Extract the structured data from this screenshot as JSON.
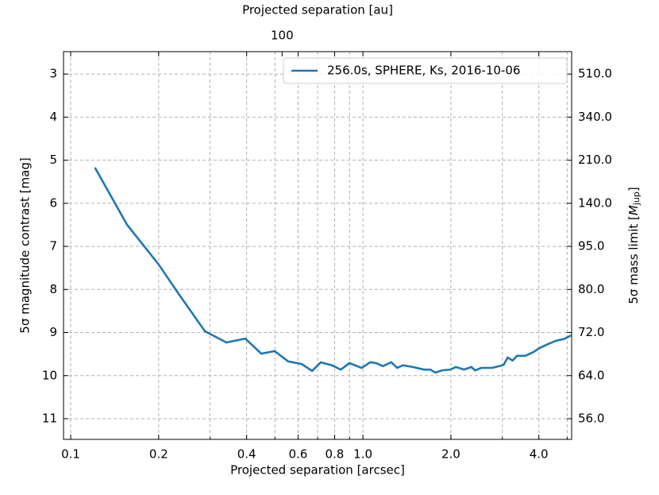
{
  "chart_data": {
    "type": "line",
    "xlabel": "Projected separation [arcsec]",
    "ylabel": "5σ magnitude contrast [mag]",
    "y2label": {
      "text": "5σ mass limit [",
      "symbol": "M",
      "sub": "jup",
      "end": "]"
    },
    "x2label": "Projected separation [au]",
    "xscale": "log",
    "x2scale": "log",
    "xlim": [
      0.0945,
      5.18
    ],
    "xticks": [
      0.1,
      0.2,
      0.4,
      0.6,
      0.8,
      {
        "value": 1,
        "label": "1.0"
      },
      {
        "value": 2,
        "label": "2.0"
      },
      {
        "value": 4,
        "label": "4.0"
      }
    ],
    "xminorticks": [
      0.3,
      0.5,
      0.7,
      0.9,
      3,
      5
    ],
    "x2lim": [
      17.86,
      979
    ],
    "x2ticks": [
      100
    ],
    "ylim": [
      2.48,
      11.48
    ],
    "yinverted": true,
    "yticks": [
      3,
      4,
      5,
      6,
      7,
      8,
      9,
      10,
      11
    ],
    "y2ticks": [
      {
        "value": 510,
        "label": "510.0"
      },
      {
        "value": 340,
        "label": "340.0"
      },
      {
        "value": 210,
        "label": "210.0"
      },
      {
        "value": 140,
        "label": "140.0"
      },
      {
        "value": 95,
        "label": "95.0"
      },
      {
        "value": 80,
        "label": "80.0"
      },
      {
        "value": 72,
        "label": "72.0"
      },
      {
        "value": 64,
        "label": "64.0"
      },
      {
        "value": 56,
        "label": "56.0"
      }
    ],
    "grid": true,
    "legend": "upper right",
    "x": [
      0.121,
      0.156,
      0.2,
      0.234,
      0.288,
      0.341,
      0.396,
      0.449,
      0.499,
      0.555,
      0.617,
      0.67,
      0.718,
      0.782,
      0.84,
      0.899,
      0.99,
      1.06,
      1.11,
      1.17,
      1.25,
      1.31,
      1.37,
      1.48,
      1.62,
      1.7,
      1.77,
      1.86,
      1.99,
      2.08,
      2.22,
      2.35,
      2.42,
      2.54,
      2.77,
      2.92,
      3.03,
      3.13,
      3.25,
      3.37,
      3.6,
      3.84,
      4.02,
      4.29,
      4.58,
      4.88,
      5.18
    ],
    "series": [
      {
        "name": "256.0s, SPHERE, Ks, 2016-10-06",
        "color": "#1f77b4",
        "values": [
          5.17,
          6.5,
          7.42,
          8.1,
          8.97,
          9.23,
          9.14,
          9.49,
          9.43,
          9.67,
          9.73,
          9.89,
          9.69,
          9.76,
          9.86,
          9.71,
          9.82,
          9.69,
          9.71,
          9.78,
          9.69,
          9.82,
          9.76,
          9.8,
          9.86,
          9.86,
          9.93,
          9.88,
          9.86,
          9.8,
          9.86,
          9.8,
          9.88,
          9.82,
          9.82,
          9.78,
          9.75,
          9.58,
          9.65,
          9.54,
          9.54,
          9.45,
          9.36,
          9.27,
          9.19,
          9.15,
          9.06
        ]
      }
    ]
  }
}
